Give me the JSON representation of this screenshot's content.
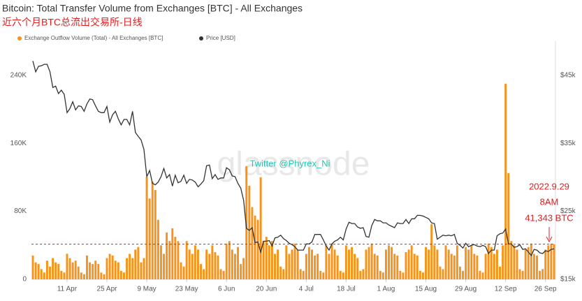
{
  "chart_data": {
    "type": "bar_line",
    "title": "Bitcoin: Total Transfer Volume from Exchanges [BTC] - All Exchanges",
    "subtitle": "近六个月BTC总流出交易所-日线",
    "watermark": "glassnode",
    "annotations": [
      "Twitter @Phyrex_Ni",
      "2022.9.29",
      "8AM",
      "41,343 BTC"
    ],
    "categories": [
      null,
      null,
      null,
      null,
      null,
      null,
      null,
      null,
      null,
      null,
      null,
      null,
      "11 Apr",
      null,
      null,
      null,
      null,
      null,
      null,
      null,
      null,
      null,
      null,
      null,
      null,
      null,
      "25 Apr",
      null,
      null,
      null,
      null,
      null,
      null,
      null,
      null,
      null,
      null,
      null,
      null,
      null,
      "9 May",
      null,
      null,
      null,
      null,
      null,
      null,
      null,
      null,
      null,
      null,
      null,
      null,
      null,
      "23 May",
      null,
      null,
      null,
      null,
      null,
      null,
      null,
      null,
      null,
      null,
      null,
      null,
      null,
      "6 Jun",
      null,
      null,
      null,
      null,
      null,
      null,
      null,
      null,
      null,
      null,
      null,
      null,
      null,
      "20 Jun",
      null,
      null,
      null,
      null,
      null,
      null,
      null,
      null,
      null,
      null,
      null,
      null,
      null,
      "4 Jul",
      null,
      null,
      null,
      null,
      null,
      null,
      null,
      null,
      null,
      null,
      null,
      null,
      null,
      "18 Jul",
      null,
      null,
      null,
      null,
      null,
      null,
      null,
      null,
      null,
      null,
      null,
      null,
      null,
      "1 Aug",
      null,
      null,
      null,
      null,
      null,
      null,
      null,
      null,
      null,
      null,
      null,
      null,
      null,
      "15 Aug",
      null,
      null,
      null,
      null,
      null,
      null,
      null,
      null,
      null,
      null,
      null,
      null,
      null,
      "29 Aug",
      null,
      null,
      null,
      null,
      null,
      null,
      null,
      null,
      null,
      null,
      null,
      null,
      null,
      "12 Sep",
      null,
      null,
      null,
      null,
      null,
      null,
      null,
      null,
      null,
      null,
      null,
      null,
      null,
      "26 Sep",
      null,
      null,
      null
    ],
    "series": [
      {
        "name": "Exchange Outflow Volume (Total) - All Exchanges [BTC]",
        "type": "bar",
        "color": "#f7931a",
        "axis": "y",
        "values": [
          28000,
          20000,
          18000,
          12000,
          8000,
          22000,
          15000,
          25000,
          20000,
          18000,
          10000,
          8000,
          30000,
          25000,
          20000,
          22000,
          15000,
          8000,
          6000,
          28000,
          20000,
          18000,
          22000,
          18000,
          8000,
          6000,
          25000,
          30000,
          28000,
          22000,
          20000,
          10000,
          8000,
          25000,
          30000,
          25000,
          35000,
          38000,
          20000,
          25000,
          120000,
          95000,
          115000,
          105000,
          70000,
          40000,
          30000,
          55000,
          45000,
          60000,
          50000,
          45000,
          20000,
          15000,
          45000,
          35000,
          30000,
          40000,
          35000,
          18000,
          12000,
          35000,
          30000,
          40000,
          32000,
          28000,
          12000,
          10000,
          42000,
          45000,
          35000,
          30000,
          38000,
          18000,
          25000,
          133000,
          110000,
          85000,
          75000,
          70000,
          120000,
          45000,
          50000,
          40000,
          45000,
          30000,
          35000,
          15000,
          12000,
          40000,
          30000,
          35000,
          42000,
          35000,
          12000,
          10000,
          30000,
          38000,
          35000,
          28000,
          30000,
          10000,
          8000,
          40000,
          30000,
          42000,
          35000,
          28000,
          10000,
          8000,
          40000,
          35000,
          38000,
          30000,
          25000,
          10000,
          12000,
          35000,
          38000,
          42000,
          30000,
          28000,
          10000,
          8000,
          35000,
          40000,
          38000,
          30000,
          28000,
          10000,
          8000,
          32000,
          35000,
          40000,
          30000,
          28000,
          10000,
          8000,
          38000,
          35000,
          65000,
          40000,
          35000,
          15000,
          12000,
          40000,
          35000,
          30000,
          28000,
          40000,
          15000,
          10000,
          38000,
          35000,
          40000,
          30000,
          28000,
          10000,
          8000,
          30000,
          42000,
          38000,
          30000,
          35000,
          15000,
          40000,
          230000,
          125000,
          45000,
          40000,
          35000,
          12000,
          10000,
          35000,
          38000,
          42000,
          30000,
          28000,
          10000,
          12000,
          35000,
          40000,
          42000,
          41343
        ]
      },
      {
        "name": "Price [USD]",
        "type": "line",
        "color": "#333333",
        "axis": "y2",
        "values": [
          47100,
          45500,
          46300,
          46400,
          46600,
          46600,
          45500,
          43200,
          43400,
          42300,
          42800,
          42200,
          39500,
          40100,
          41100,
          39900,
          40500,
          40400,
          39700,
          40800,
          41500,
          41400,
          40500,
          39700,
          39500,
          39500,
          40400,
          38100,
          39200,
          39700,
          38600,
          37700,
          38500,
          38500,
          37700,
          39700,
          36600,
          36000,
          35500,
          34100,
          30100,
          31000,
          29100,
          28900,
          29300,
          30100,
          31300,
          29900,
          30400,
          28700,
          30300,
          29200,
          29400,
          30300,
          29100,
          29700,
          29600,
          29300,
          28600,
          29000,
          29500,
          31700,
          31800,
          29800,
          30400,
          29700,
          29900,
          29900,
          31400,
          31100,
          30200,
          30100,
          29100,
          28400,
          26600,
          22500,
          22200,
          22600,
          20400,
          20500,
          19000,
          20600,
          20600,
          20700,
          19900,
          21100,
          21200,
          21500,
          21000,
          20700,
          20300,
          20100,
          19800,
          19300,
          19300,
          19300,
          20200,
          20200,
          20500,
          21600,
          21600,
          21600,
          20800,
          19900,
          19300,
          20200,
          20600,
          20800,
          21200,
          20800,
          22400,
          23400,
          23200,
          23200,
          22700,
          22500,
          22600,
          21300,
          21200,
          22900,
          23800,
          23600,
          23600,
          23300,
          23300,
          23000,
          22800,
          22600,
          23300,
          23200,
          23200,
          23800,
          23200,
          23900,
          23900,
          24400,
          24400,
          24300,
          24100,
          23900,
          23300,
          23200,
          20900,
          21200,
          21500,
          21400,
          21500,
          21400,
          21600,
          20300,
          20000,
          19600,
          20300,
          19800,
          20000,
          20100,
          19900,
          19800,
          20000,
          19800,
          18800,
          19300,
          19300,
          21400,
          21700,
          21800,
          22400,
          20200,
          20200,
          19700,
          19800,
          20100,
          19400,
          19500,
          19000,
          18500,
          19400,
          19300,
          18900,
          18800,
          19200,
          19100,
          19400,
          19500
        ]
      }
    ],
    "ylim": [
      0,
      280000
    ],
    "yticks": [
      0,
      {
        "value": 80000,
        "label": "80K"
      },
      {
        "value": 160000,
        "label": "160K"
      },
      {
        "value": 240000,
        "label": "240K"
      }
    ],
    "y2lim": [
      15000,
      50000
    ],
    "y2ticks": [
      {
        "value": 15000,
        "label": "$15k"
      },
      {
        "value": 25000,
        "label": "$25k"
      },
      {
        "value": 35000,
        "label": "$35k"
      },
      {
        "value": 45000,
        "label": "$45k"
      }
    ],
    "grid": false
  }
}
